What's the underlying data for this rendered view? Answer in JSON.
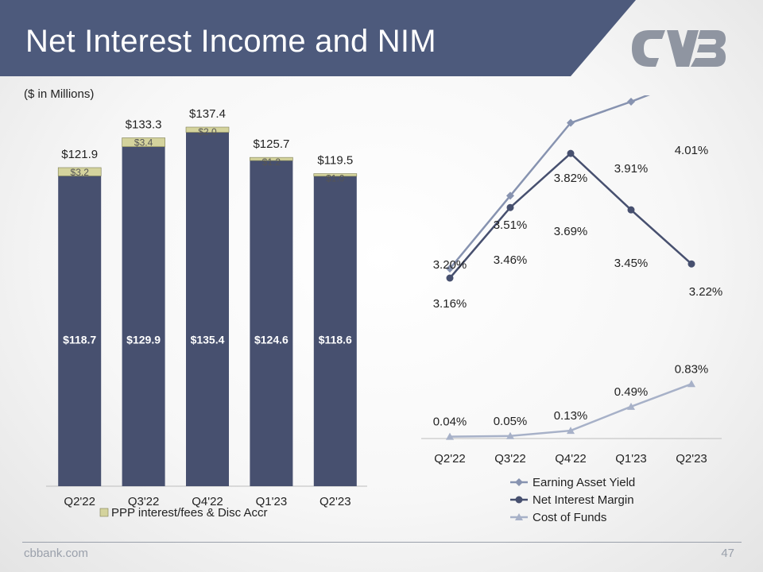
{
  "slide": {
    "title": "Net Interest Income and NIM",
    "units_note": "($ in Millions)",
    "footer_site": "cbbank.com",
    "page_number": "47"
  },
  "colors": {
    "header": "#4d5a7c",
    "bar_main": "#47506f",
    "bar_ppp": "#d4d39d",
    "ppp_border": "#7d7d52",
    "earning_yield": "#8793b0",
    "nim": "#47506f",
    "cost_of_funds": "#a7b1c8",
    "logo": "#8f95a1",
    "axis": "#bdbdbd"
  },
  "icons": {
    "logo": "cvb-logo"
  },
  "chart_data": [
    {
      "type": "bar",
      "stacked": true,
      "title": "",
      "categories": [
        "Q2'22",
        "Q3'22",
        "Q4'22",
        "Q1'23",
        "Q2'23"
      ],
      "series": [
        {
          "name": "Net Interest Income",
          "values": [
            118.7,
            129.9,
            135.4,
            124.6,
            118.6
          ],
          "labels": [
            "$118.7",
            "$129.9",
            "$135.4",
            "$124.6",
            "$118.6"
          ],
          "in_legend": false
        },
        {
          "name": "PPP interest/fees & Disc Accr",
          "values": [
            3.2,
            3.4,
            2.0,
            1.2,
            1.0
          ],
          "labels": [
            "$3.2",
            "$3.4",
            "$2.0",
            "$1.2",
            "$1.0"
          ],
          "in_legend": true
        }
      ],
      "totals": [
        121.9,
        133.3,
        137.4,
        125.7,
        119.5
      ],
      "total_labels": [
        "$121.9",
        "$133.3",
        "$137.4",
        "$125.7",
        "$119.5"
      ],
      "ylim": [
        0,
        150
      ],
      "legend": "bottom",
      "grid": false
    },
    {
      "type": "line",
      "title": "",
      "categories": [
        "Q2'22",
        "Q3'22",
        "Q4'22",
        "Q1'23",
        "Q2'23"
      ],
      "series": [
        {
          "name": "Earning Asset Yield",
          "values": [
            3.2,
            3.51,
            3.82,
            3.91,
            4.01
          ],
          "labels": [
            "3.20%",
            "3.51%",
            "3.82%",
            "3.91%",
            "4.01%"
          ],
          "marker": "diamond"
        },
        {
          "name": "Net Interest Margin",
          "values": [
            3.16,
            3.46,
            3.69,
            3.45,
            3.22
          ],
          "labels": [
            "3.16%",
            "3.46%",
            "3.69%",
            "3.45%",
            "3.22%"
          ],
          "marker": "circle"
        },
        {
          "name": "Cost of Funds",
          "values": [
            0.04,
            0.05,
            0.13,
            0.49,
            0.83
          ],
          "labels": [
            "0.04%",
            "0.05%",
            "0.13%",
            "0.49%",
            "0.83%"
          ],
          "marker": "triangle"
        }
      ],
      "legend": "bottom",
      "grid": false
    }
  ]
}
